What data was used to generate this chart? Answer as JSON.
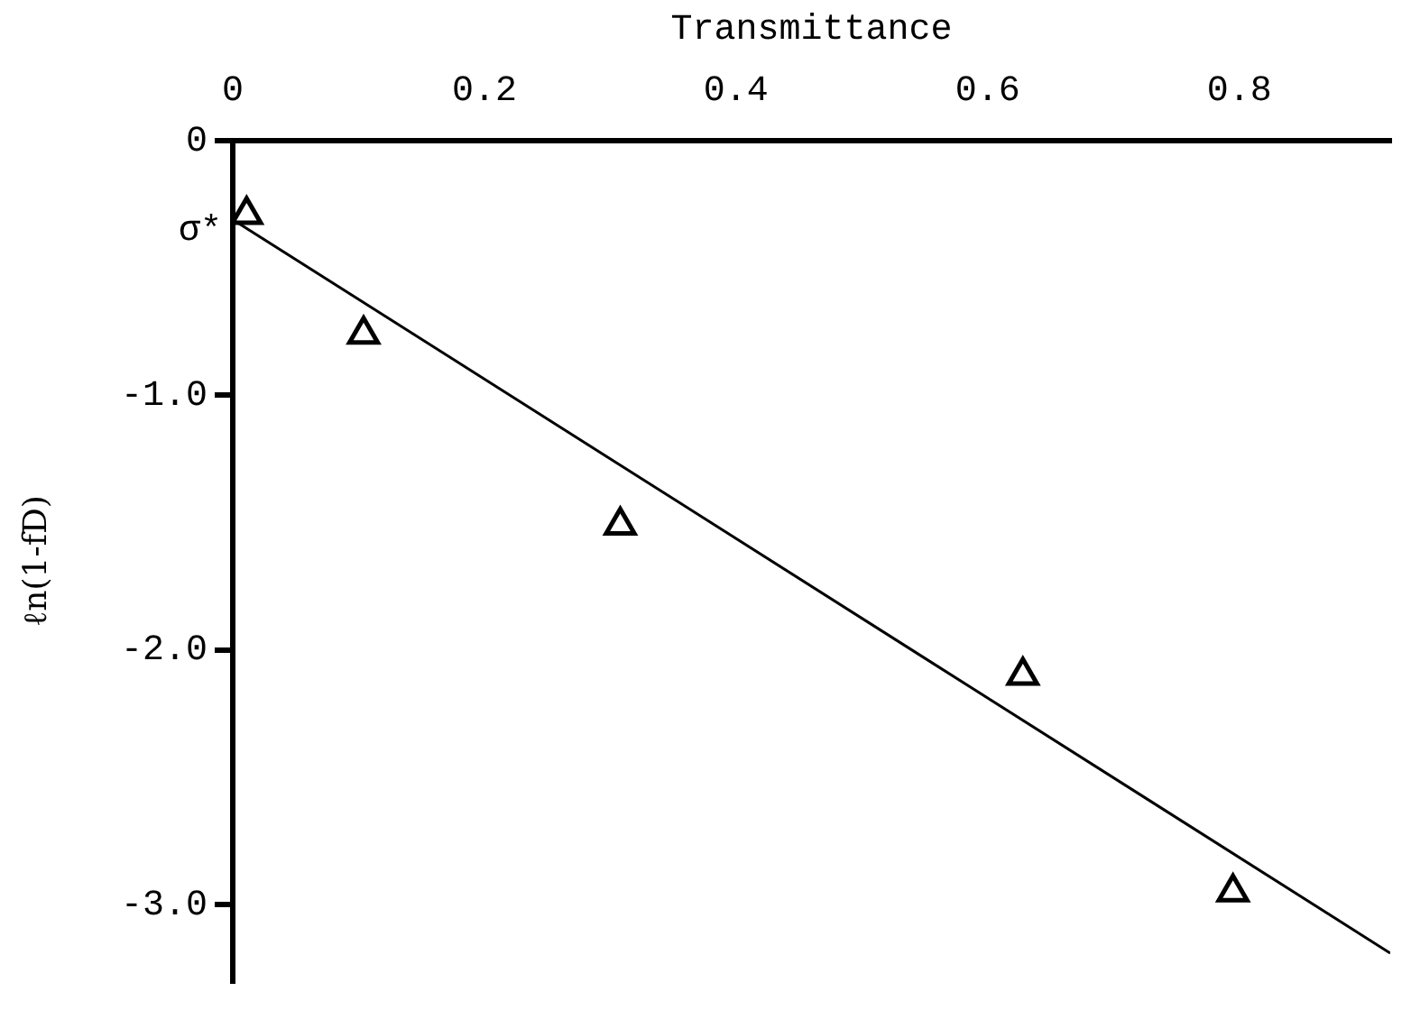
{
  "chart_data": {
    "type": "scatter",
    "xlabel": "Transmittance",
    "ylabel": "ℓn(1-fD)",
    "xlim": [
      0,
      0.92
    ],
    "ylim": [
      -3.3,
      0
    ],
    "xticks": [
      0,
      0.2,
      0.4,
      0.6,
      0.8
    ],
    "yticks": [
      {
        "value": 0,
        "label": "0"
      },
      {
        "value": -1,
        "label": "-1.0"
      },
      {
        "value": -2,
        "label": "-2.0"
      },
      {
        "value": -3,
        "label": "-3.0"
      }
    ],
    "marker": "triangle",
    "series": [
      {
        "color": "#000000",
        "x": [
          0.011,
          0.104,
          0.308,
          0.628,
          0.795
        ],
        "values": [
          -0.29,
          -0.76,
          -1.51,
          -2.1,
          -2.95
        ]
      },
      {
        "type": "line",
        "color": "#000000",
        "marker": "none",
        "x": [
          0,
          0.92
        ],
        "values": [
          -0.31,
          -3.19
        ]
      }
    ],
    "annotations": [
      {
        "text": "σ*",
        "x": 0,
        "y": -0.33
      }
    ]
  }
}
